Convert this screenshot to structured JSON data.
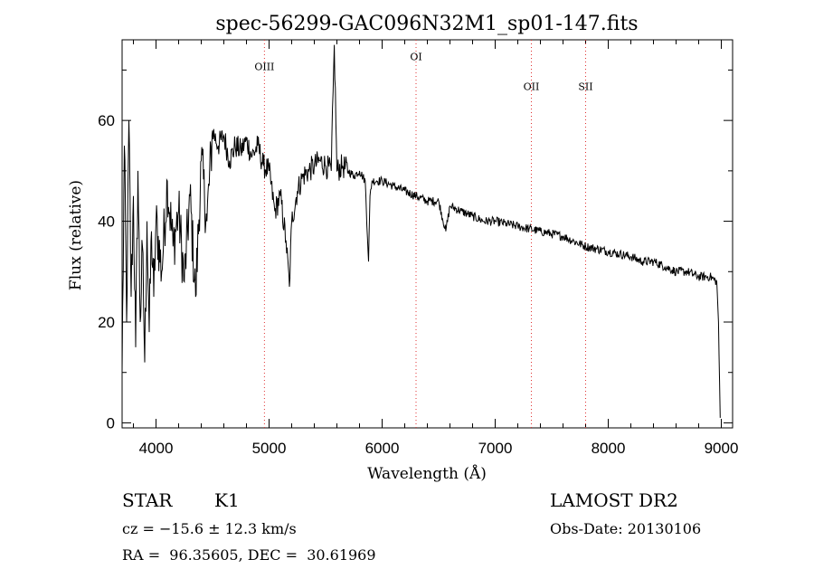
{
  "header": {
    "title": "spec-56299-GAC096N32M1_sp01-147.fits"
  },
  "info": {
    "class_label": "STAR",
    "subclass_label": "K1",
    "survey": "LAMOST DR2",
    "cz_text": "cz = −15.6 ± 12.3 km/s",
    "obs_date_text": "Obs-Date: 20130106",
    "radec_text": "RA =  96.35605, DEC =  30.61969"
  },
  "chart_data": {
    "type": "line",
    "title": "spec-56299-GAC096N32M1_sp01-147.fits",
    "xlabel": "Wavelength (Å)",
    "ylabel": "Flux (relative)",
    "xlim": [
      3700,
      9100
    ],
    "ylim": [
      -1,
      76
    ],
    "xticks": [
      4000,
      5000,
      6000,
      7000,
      8000,
      9000
    ],
    "yticks": [
      0,
      20,
      40,
      60
    ],
    "grid": false,
    "series": [
      {
        "x": [
          3700,
          3720,
          3740,
          3760,
          3780,
          3800,
          3820,
          3840,
          3860,
          3880,
          3900,
          3920,
          3940,
          3960,
          3980,
          4000,
          4050,
          4100,
          4150,
          4200,
          4250,
          4300,
          4350,
          4400,
          4450,
          4500,
          4550,
          4600,
          4650,
          4700,
          4750,
          4800,
          4850,
          4900,
          4950,
          5000,
          5050,
          5100,
          5150,
          5180,
          5200,
          5250,
          5300,
          5350,
          5400,
          5450,
          5500,
          5550,
          5577,
          5600,
          5650,
          5700,
          5750,
          5800,
          5850,
          5880,
          5893,
          5910,
          5950,
          6000,
          6100,
          6200,
          6300,
          6400,
          6500,
          6563,
          6600,
          6700,
          6800,
          6900,
          7000,
          7100,
          7200,
          7300,
          7400,
          7500,
          7600,
          7700,
          7800,
          7900,
          8000,
          8100,
          8200,
          8300,
          8400,
          8500,
          8600,
          8700,
          8800,
          8900,
          8960,
          8975,
          8990
        ],
        "y": [
          10,
          55,
          20,
          60,
          25,
          45,
          15,
          50,
          20,
          35,
          12,
          40,
          18,
          38,
          25,
          40,
          30,
          48,
          35,
          42,
          28,
          45,
          25,
          52,
          40,
          58,
          55,
          57,
          52,
          55,
          54,
          56,
          53,
          55,
          51,
          50,
          42,
          45,
          36,
          27,
          40,
          46,
          49,
          50,
          51,
          52,
          51,
          50,
          75,
          50,
          51,
          50,
          49,
          50,
          48,
          32,
          45,
          48,
          48,
          48,
          47,
          46,
          45,
          44,
          44,
          38,
          43,
          42,
          41,
          40,
          40,
          39.5,
          39,
          38.5,
          38,
          37.5,
          37,
          36,
          35,
          34.5,
          34,
          33.5,
          33,
          32,
          32,
          31,
          30,
          30,
          29,
          29,
          28,
          20,
          1
        ]
      }
    ],
    "emission_lines": [
      {
        "label": "OIII",
        "x": 4959,
        "label_y": 70
      },
      {
        "label": "OI",
        "x": 6300,
        "label_y": 72
      },
      {
        "label": "OII",
        "x": 7320,
        "label_y": 66
      },
      {
        "label": "SII",
        "x": 7800,
        "label_y": 66
      }
    ]
  }
}
